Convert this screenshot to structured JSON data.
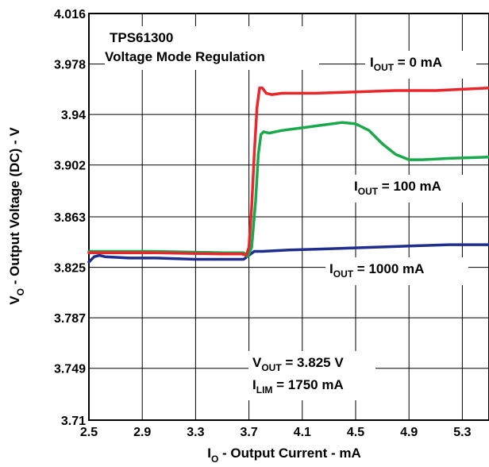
{
  "chart_data": {
    "type": "line",
    "title": "TPS61300",
    "subtitle": "Voltage Mode Regulation",
    "xlabel": {
      "main": "I",
      "sub": "O",
      "rest": " - Output Current - mA"
    },
    "ylabel": {
      "main": "V",
      "sub": "O",
      "rest": " - Output Voltage (DC) - V"
    },
    "xlim": [
      2.5,
      5.5
    ],
    "ylim": [
      3.71,
      4.016
    ],
    "grid": true,
    "x_ticks": [
      {
        "value": 2.5,
        "label": "2.5"
      },
      {
        "value": 2.9,
        "label": "2.9"
      },
      {
        "value": 3.3,
        "label": "3.3"
      },
      {
        "value": 3.7,
        "label": "3.7"
      },
      {
        "value": 4.1,
        "label": "4.1"
      },
      {
        "value": 4.5,
        "label": "4.5"
      },
      {
        "value": 4.9,
        "label": "4.9"
      },
      {
        "value": 5.3,
        "label": "5.3"
      }
    ],
    "y_ticks": [
      {
        "value": 3.71,
        "label": "3.71"
      },
      {
        "value": 3.749,
        "label": "3.749"
      },
      {
        "value": 3.787,
        "label": "3.787"
      },
      {
        "value": 3.825,
        "label": "3.825"
      },
      {
        "value": 3.863,
        "label": "3.863"
      },
      {
        "value": 3.902,
        "label": "3.902"
      },
      {
        "value": 3.94,
        "label": "3.94"
      },
      {
        "value": 3.978,
        "label": "3.978"
      },
      {
        "value": 4.016,
        "label": "4.016"
      }
    ],
    "series": [
      {
        "name": "IOUT = 0 mA",
        "color": "#e8262b",
        "x": [
          2.5,
          3.0,
          3.5,
          3.65,
          3.68,
          3.7,
          3.72,
          3.74,
          3.76,
          3.78,
          3.8,
          3.83,
          3.87,
          3.95,
          4.2,
          4.5,
          4.8,
          5.1,
          5.5
        ],
        "y": [
          3.836,
          3.836,
          3.835,
          3.835,
          3.834,
          3.84,
          3.87,
          3.91,
          3.945,
          3.96,
          3.96,
          3.956,
          3.955,
          3.956,
          3.956,
          3.957,
          3.958,
          3.958,
          3.96
        ]
      },
      {
        "name": "IOUT = 100 mA",
        "color": "#1aa84d",
        "x": [
          2.5,
          3.0,
          3.5,
          3.66,
          3.69,
          3.72,
          3.75,
          3.77,
          3.79,
          3.81,
          3.85,
          3.95,
          4.1,
          4.25,
          4.4,
          4.5,
          4.6,
          4.7,
          4.8,
          4.9,
          5.0,
          5.2,
          5.5
        ],
        "y": [
          3.837,
          3.837,
          3.836,
          3.836,
          3.833,
          3.84,
          3.875,
          3.91,
          3.925,
          3.927,
          3.926,
          3.928,
          3.93,
          3.932,
          3.934,
          3.933,
          3.928,
          3.918,
          3.91,
          3.906,
          3.906,
          3.907,
          3.908
        ]
      },
      {
        "name": "IOUT = 1000 mA",
        "color": "#1f2d8c",
        "x": [
          2.5,
          2.54,
          2.58,
          2.62,
          2.8,
          3.0,
          3.3,
          3.6,
          3.66,
          3.7,
          3.74,
          3.8,
          4.0,
          4.3,
          4.6,
          4.9,
          5.2,
          5.5
        ],
        "y": [
          3.829,
          3.833,
          3.834,
          3.833,
          3.832,
          3.832,
          3.831,
          3.831,
          3.831,
          3.834,
          3.837,
          3.837,
          3.838,
          3.839,
          3.84,
          3.841,
          3.842,
          3.842
        ]
      }
    ],
    "annotations": {
      "iout0": {
        "main": "I",
        "sub": "OUT",
        "rest": " = 0 mA"
      },
      "iout100": {
        "main": "I",
        "sub": "OUT",
        "rest": " = 100 mA"
      },
      "iout1000": {
        "main": "I",
        "sub": "OUT",
        "rest": " = 1000 mA"
      },
      "vout": {
        "main": "V",
        "sub": "OUT",
        "rest": " = 3.825 V"
      },
      "ilim": {
        "main": "I",
        "sub": "LIM",
        "rest": " = 1750 mA"
      }
    }
  }
}
